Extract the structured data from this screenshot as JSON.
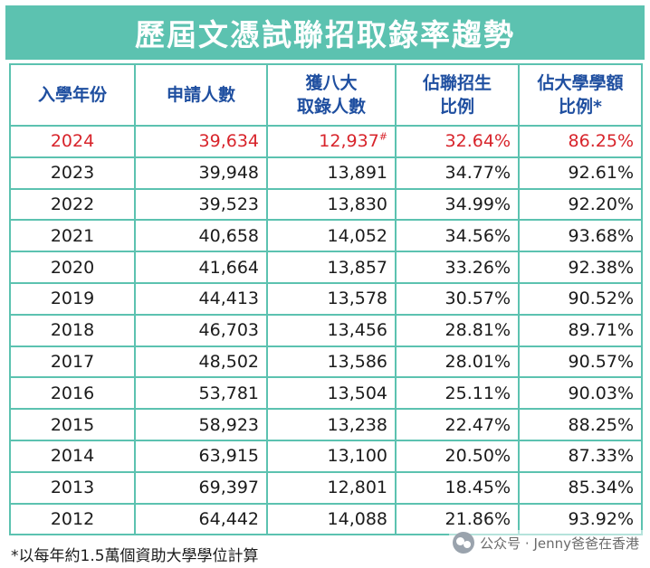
{
  "title": "歷屆文憑試聯招取錄率趨勢",
  "headers": {
    "year": "入學年份",
    "applicants": "申請人數",
    "admitted_line1": "獲八大",
    "admitted_line2": "取錄人數",
    "ratio_jupas_line1": "佔聯招生",
    "ratio_jupas_line2": "比例",
    "ratio_quota_line1": "佔大學學額",
    "ratio_quota_line2": "比例*"
  },
  "rows": [
    {
      "year": "2024",
      "applicants": "39,634",
      "admitted": "12,937",
      "mark": "#",
      "ratio_jupas": "32.64%",
      "ratio_quota": "86.25%"
    },
    {
      "year": "2023",
      "applicants": "39,948",
      "admitted": "13,891",
      "mark": "",
      "ratio_jupas": "34.77%",
      "ratio_quota": "92.61%"
    },
    {
      "year": "2022",
      "applicants": "39,523",
      "admitted": "13,830",
      "mark": "",
      "ratio_jupas": "34.99%",
      "ratio_quota": "92.20%"
    },
    {
      "year": "2021",
      "applicants": "40,658",
      "admitted": "14,052",
      "mark": "",
      "ratio_jupas": "34.56%",
      "ratio_quota": "93.68%"
    },
    {
      "year": "2020",
      "applicants": "41,664",
      "admitted": "13,857",
      "mark": "",
      "ratio_jupas": "33.26%",
      "ratio_quota": "92.38%"
    },
    {
      "year": "2019",
      "applicants": "44,413",
      "admitted": "13,578",
      "mark": "",
      "ratio_jupas": "30.57%",
      "ratio_quota": "90.52%"
    },
    {
      "year": "2018",
      "applicants": "46,703",
      "admitted": "13,456",
      "mark": "",
      "ratio_jupas": "28.81%",
      "ratio_quota": "89.71%"
    },
    {
      "year": "2017",
      "applicants": "48,502",
      "admitted": "13,586",
      "mark": "",
      "ratio_jupas": "28.01%",
      "ratio_quota": "90.57%"
    },
    {
      "year": "2016",
      "applicants": "53,781",
      "admitted": "13,504",
      "mark": "",
      "ratio_jupas": "25.11%",
      "ratio_quota": "90.03%"
    },
    {
      "year": "2015",
      "applicants": "58,923",
      "admitted": "13,238",
      "mark": "",
      "ratio_jupas": "22.47%",
      "ratio_quota": "88.25%"
    },
    {
      "year": "2014",
      "applicants": "63,915",
      "admitted": "13,100",
      "mark": "",
      "ratio_jupas": "20.50%",
      "ratio_quota": "87.33%"
    },
    {
      "year": "2013",
      "applicants": "69,397",
      "admitted": "12,801",
      "mark": "",
      "ratio_jupas": "18.45%",
      "ratio_quota": "85.34%"
    },
    {
      "year": "2012",
      "applicants": "64,442",
      "admitted": "14,088",
      "mark": "",
      "ratio_jupas": "21.86%",
      "ratio_quota": "93.92%"
    }
  ],
  "footnote": "*以每年約1.5萬個資助大學學位計算",
  "watermark": {
    "label": "公众号 · Jenny爸爸在香港",
    "icon": "wechat-icon"
  },
  "colors": {
    "accent": "#5cc2b0",
    "header_text": "#1f4fa0",
    "highlight_text": "#d8242b"
  }
}
